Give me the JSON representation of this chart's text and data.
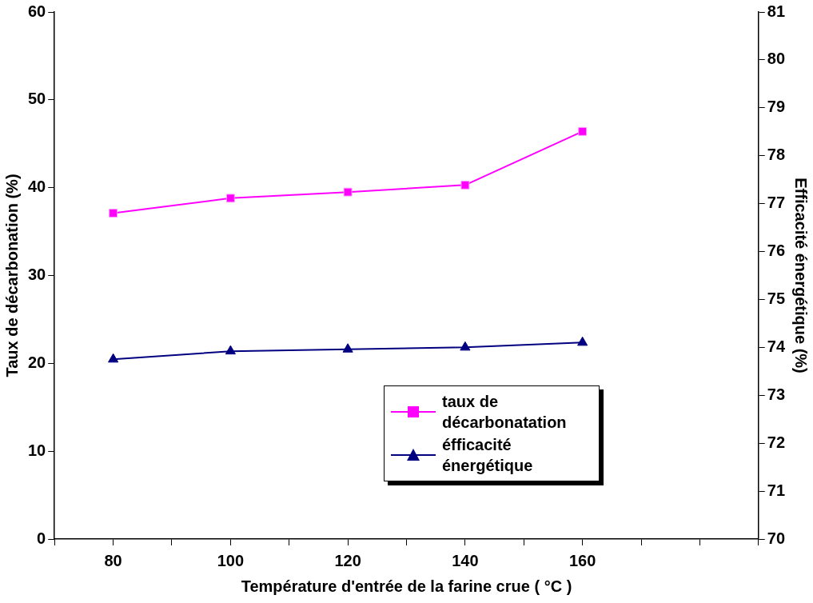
{
  "chart_data": {
    "type": "line",
    "xlabel": "Température d'entrée de la farine crue ( °C )",
    "ylabel": "Taux de décarbonation (%)",
    "y2label": "Efficacité énergétique (%)",
    "x": [
      80,
      100,
      120,
      140,
      160
    ],
    "series": [
      {
        "name": "taux de décarbonatation",
        "color": "#ff00ff",
        "marker": "square",
        "values": [
          37.1,
          38.8,
          39.5,
          40.3,
          46.4
        ]
      },
      {
        "name": "éfficacité énergétique",
        "color": "#000080",
        "marker": "triangle",
        "axis": "y2",
        "values": [
          73.75,
          73.92,
          73.96,
          74.0,
          74.1
        ]
      }
    ],
    "xlim": [
      70,
      190
    ],
    "xticks": [
      {
        "value": 70,
        "label": null
      },
      80,
      {
        "value": 90,
        "label": null
      },
      100,
      {
        "value": 110,
        "label": null
      },
      120,
      {
        "value": 130,
        "label": null
      },
      140,
      {
        "value": 150,
        "label": null
      },
      160,
      {
        "value": 170,
        "label": null
      },
      {
        "value": 180,
        "label": null
      },
      {
        "value": 190,
        "label": null
      }
    ],
    "ylim": [
      0,
      60
    ],
    "yticks": [
      0,
      10,
      20,
      30,
      40,
      50,
      60
    ],
    "y2lim": [
      70,
      81
    ],
    "y2ticks": [
      70,
      71,
      72,
      73,
      74,
      75,
      76,
      77,
      78,
      79,
      80,
      81
    ],
    "legend": "bottom right",
    "grid": false,
    "line_style": "solid"
  }
}
